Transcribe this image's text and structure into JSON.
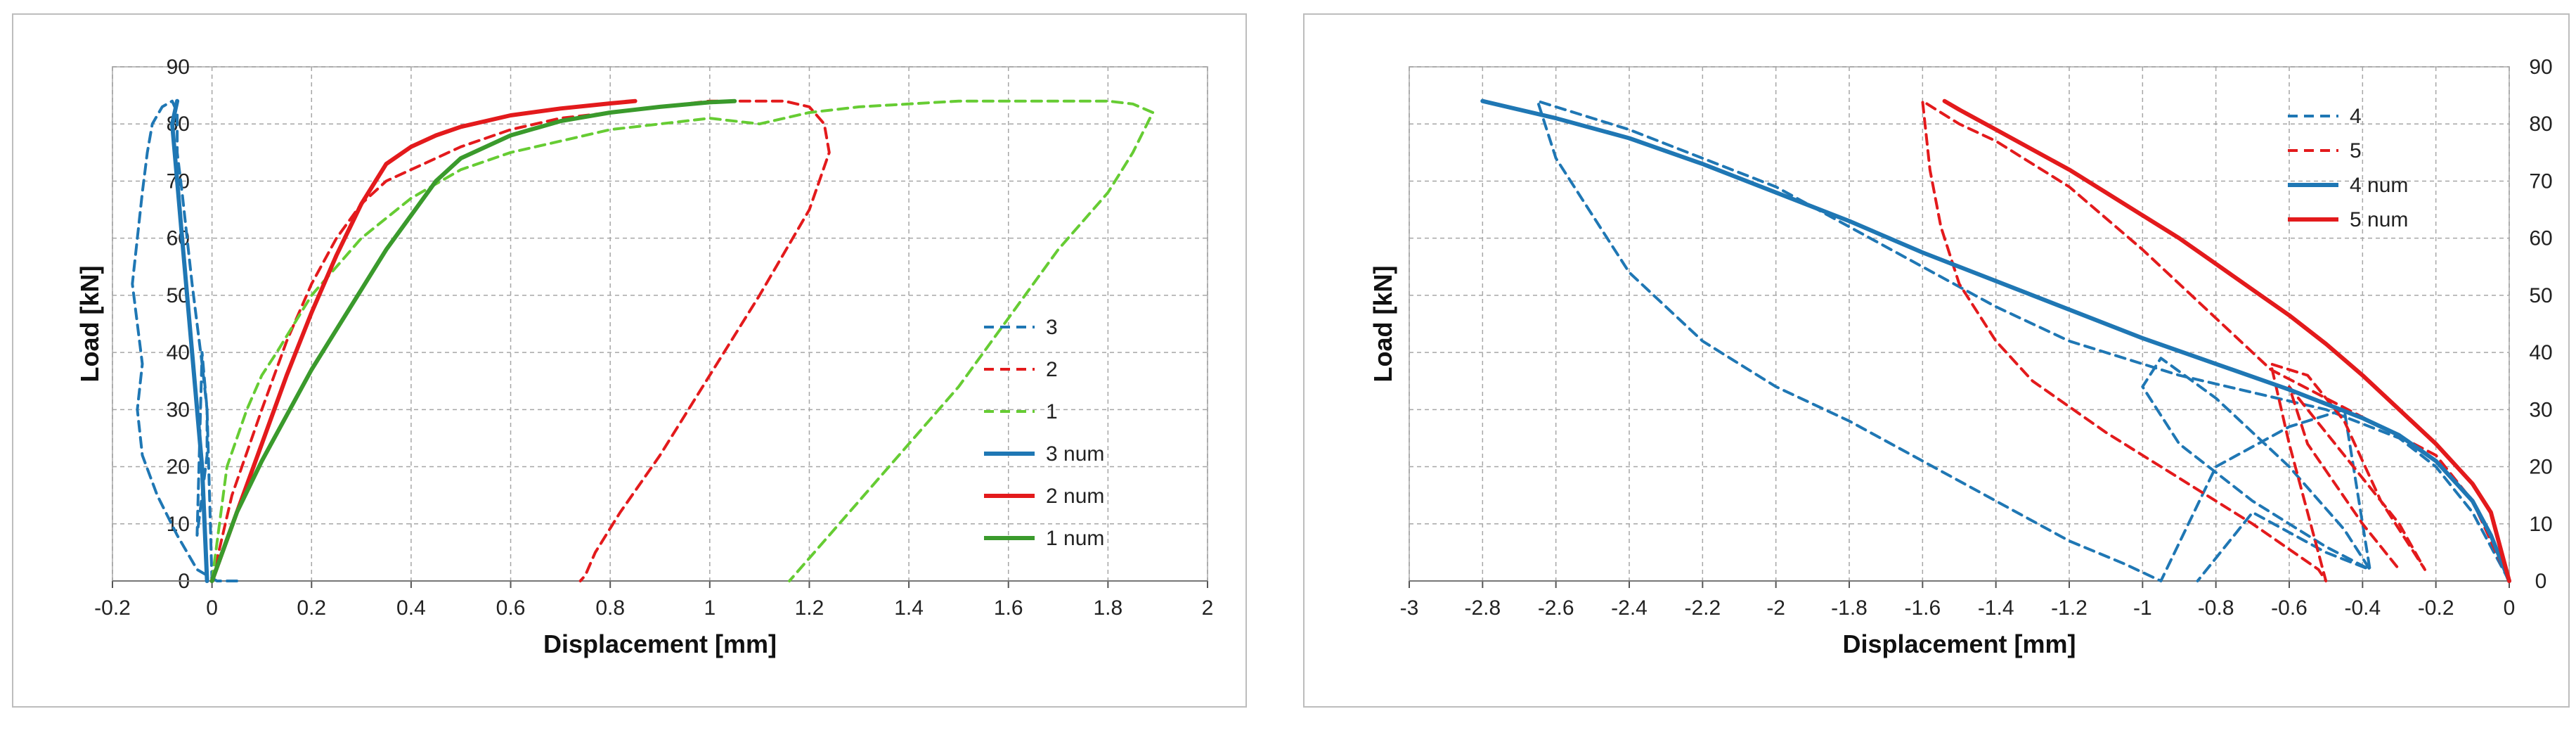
{
  "chart_data": [
    {
      "type": "line",
      "xlabel": "Displacement [mm]",
      "ylabel": "Load [kN]",
      "xlim": [
        -0.2,
        2
      ],
      "ylim": [
        0,
        90
      ],
      "xticks": [
        "-0.2",
        "0",
        "0.2",
        "0.4",
        "0.6",
        "0.8",
        "1",
        "1.2",
        "1.4",
        "1.6",
        "1.8",
        "2"
      ],
      "yticks": [
        "0",
        "10",
        "20",
        "30",
        "40",
        "50",
        "60",
        "70",
        "80",
        "90"
      ],
      "y_axis_side": "left",
      "grid": true,
      "legend": "center-right",
      "series": [
        {
          "name": "3",
          "color": "#1f77b4",
          "dash": true,
          "x": [
            0.05,
            0.01,
            -0.03,
            -0.07,
            -0.11,
            -0.14,
            -0.15,
            -0.14,
            -0.15,
            -0.16,
            -0.15,
            -0.14,
            -0.13,
            -0.12,
            -0.1,
            -0.08,
            -0.07,
            -0.07,
            -0.06,
            -0.05,
            -0.04,
            -0.03,
            -0.02,
            -0.01,
            -0.01,
            -0.02,
            -0.03,
            -0.02,
            -0.01,
            0.0
          ],
          "y": [
            0,
            0,
            2,
            8,
            15,
            22,
            30,
            38,
            45,
            52,
            60,
            68,
            75,
            80,
            83,
            84,
            82,
            75,
            68,
            60,
            52,
            45,
            38,
            30,
            22,
            15,
            8,
            40,
            30,
            0
          ]
        },
        {
          "name": "2",
          "color": "#e31a1c",
          "dash": true,
          "x": [
            0.0,
            0.04,
            0.1,
            0.15,
            0.2,
            0.25,
            0.3,
            0.35,
            0.4,
            0.5,
            0.6,
            0.7,
            0.8,
            0.9,
            1.0,
            1.1,
            1.15,
            1.2,
            1.23,
            1.24,
            1.2,
            1.1,
            1.0,
            0.9,
            0.82,
            0.77,
            0.75,
            0.74
          ],
          "y": [
            0,
            15,
            30,
            42,
            52,
            60,
            66,
            70,
            72,
            76,
            79,
            81,
            82,
            83,
            84,
            84,
            84,
            83,
            80,
            75,
            65,
            50,
            36,
            22,
            12,
            5,
            1,
            0
          ]
        },
        {
          "name": "1",
          "color": "#66cc33",
          "dash": true,
          "x": [
            0.0,
            0.03,
            0.07,
            0.1,
            0.13,
            0.2,
            0.3,
            0.4,
            0.5,
            0.6,
            0.7,
            0.8,
            0.9,
            1.0,
            1.1,
            1.2,
            1.3,
            1.4,
            1.5,
            1.6,
            1.7,
            1.8,
            1.85,
            1.89,
            1.85,
            1.8,
            1.7,
            1.6,
            1.5,
            1.4,
            1.3,
            1.2,
            1.16
          ],
          "y": [
            0,
            20,
            30,
            36,
            40,
            50,
            60,
            67,
            72,
            75,
            77,
            79,
            80,
            81,
            80,
            82,
            83,
            83.5,
            84,
            84,
            84,
            84,
            83.5,
            82,
            75,
            68,
            58,
            46,
            34,
            24,
            14,
            4,
            0
          ]
        },
        {
          "name": "3 num",
          "color": "#1f77b4",
          "dash": false,
          "x": [
            -0.01,
            -0.02,
            -0.03,
            -0.04,
            -0.05,
            -0.06,
            -0.07,
            -0.08,
            -0.07
          ],
          "y": [
            0,
            20,
            30,
            40,
            50,
            60,
            70,
            80,
            84
          ]
        },
        {
          "name": "2 num",
          "color": "#e31a1c",
          "dash": false,
          "x": [
            0.0,
            0.05,
            0.1,
            0.15,
            0.2,
            0.25,
            0.3,
            0.35,
            0.4,
            0.45,
            0.5,
            0.6,
            0.7,
            0.8,
            0.85
          ],
          "y": [
            0,
            12,
            24,
            36,
            47,
            57,
            66,
            73,
            76,
            78,
            79.5,
            81.5,
            82.7,
            83.6,
            84
          ]
        },
        {
          "name": "1 num",
          "color": "#3a9a2c",
          "dash": false,
          "x": [
            0.0,
            0.05,
            0.1,
            0.15,
            0.2,
            0.25,
            0.3,
            0.35,
            0.4,
            0.45,
            0.5,
            0.6,
            0.7,
            0.8,
            0.9,
            1.0,
            1.05
          ],
          "y": [
            0,
            12,
            21,
            29,
            37,
            44,
            51,
            58,
            64,
            70,
            74,
            78,
            80.5,
            82,
            83,
            83.8,
            84
          ]
        }
      ]
    },
    {
      "type": "line",
      "xlabel": "Displacement [mm]",
      "ylabel": "Load [kN]",
      "xlim": [
        -3,
        0
      ],
      "ylim": [
        0,
        90
      ],
      "xticks": [
        "-3",
        "-2.8",
        "-2.6",
        "-2.4",
        "-2.2",
        "-2",
        "-1.8",
        "-1.6",
        "-1.4",
        "-1.2",
        "-1",
        "-0.8",
        "-0.6",
        "-0.4",
        "-0.2",
        "0"
      ],
      "yticks": [
        "0",
        "10",
        "20",
        "30",
        "40",
        "50",
        "60",
        "70",
        "80",
        "90"
      ],
      "y_axis_side": "right",
      "grid": true,
      "legend": "top-right",
      "series": [
        {
          "name": "4",
          "color": "#1f77b4",
          "dash": true,
          "x": [
            0.0,
            -0.1,
            -0.2,
            -0.3,
            -0.5,
            -0.7,
            -0.9,
            -1.0,
            -1.2,
            -1.4,
            -1.6,
            -1.8,
            -2.0,
            -2.2,
            -2.4,
            -2.5,
            -2.6,
            -2.65,
            -2.6,
            -2.5,
            -2.4,
            -2.2,
            -2.0,
            -1.8,
            -1.6,
            -1.4,
            -1.2,
            -1.05,
            -0.95,
            -0.8,
            -0.6,
            -0.45,
            -0.38,
            -0.5,
            -0.7,
            -0.9,
            -1.0,
            -0.95,
            -0.8,
            -0.6,
            -0.45,
            -0.38,
            -0.5,
            -0.7,
            -0.85
          ],
          "y": [
            0,
            12,
            20,
            25,
            30,
            33,
            36,
            38,
            42,
            48,
            55,
            62,
            69,
            74,
            79,
            81,
            83,
            84,
            74,
            64,
            54,
            42,
            34,
            28,
            21,
            14,
            7,
            3,
            0,
            20,
            27,
            30,
            2,
            6,
            14,
            24,
            34,
            39,
            32,
            20,
            9,
            2,
            5,
            12,
            0
          ]
        },
        {
          "name": "5",
          "color": "#e31a1c",
          "dash": true,
          "x": [
            0.0,
            -0.1,
            -0.2,
            -0.35,
            -0.5,
            -0.65,
            -0.8,
            -1.0,
            -1.2,
            -1.4,
            -1.5,
            -1.55,
            -1.6,
            -1.58,
            -1.55,
            -1.5,
            -1.4,
            -1.3,
            -1.1,
            -0.9,
            -0.7,
            -0.52,
            -0.5,
            -0.6,
            -0.65,
            -0.55,
            -0.45,
            -0.35,
            -0.25,
            -0.23,
            -0.3,
            -0.45,
            -0.6,
            -0.55,
            -0.4,
            -0.3
          ],
          "y": [
            0,
            14,
            22,
            27,
            32,
            37,
            46,
            58,
            69,
            77,
            80,
            82,
            84,
            72,
            62,
            52,
            42,
            35,
            26,
            18,
            10,
            2,
            0,
            24,
            38,
            36,
            28,
            14,
            4,
            2,
            10,
            22,
            34,
            24,
            10,
            2
          ]
        },
        {
          "name": "4 num",
          "color": "#1f77b4",
          "dash": false,
          "x": [
            0.0,
            -0.05,
            -0.1,
            -0.2,
            -0.3,
            -0.4,
            -0.5,
            -0.6,
            -0.8,
            -1.0,
            -1.2,
            -1.4,
            -1.6,
            -1.8,
            -2.0,
            -2.2,
            -2.4,
            -2.6,
            -2.8
          ],
          "y": [
            0,
            8,
            14,
            21,
            25.5,
            28.5,
            31,
            33.5,
            38,
            42.5,
            47.5,
            52.5,
            57.5,
            63,
            68,
            73,
            77.5,
            81,
            84
          ]
        },
        {
          "name": "5 num",
          "color": "#e31a1c",
          "dash": false,
          "x": [
            0.0,
            -0.05,
            -0.1,
            -0.2,
            -0.3,
            -0.4,
            -0.5,
            -0.6,
            -0.7,
            -0.8,
            -0.9,
            -1.0,
            -1.1,
            -1.2,
            -1.3,
            -1.4,
            -1.5,
            -1.54
          ],
          "y": [
            0,
            12,
            17,
            24,
            30,
            36,
            41.5,
            46.5,
            51,
            55.5,
            60,
            64,
            68,
            72,
            75.5,
            79,
            82.5,
            84
          ]
        }
      ]
    }
  ]
}
